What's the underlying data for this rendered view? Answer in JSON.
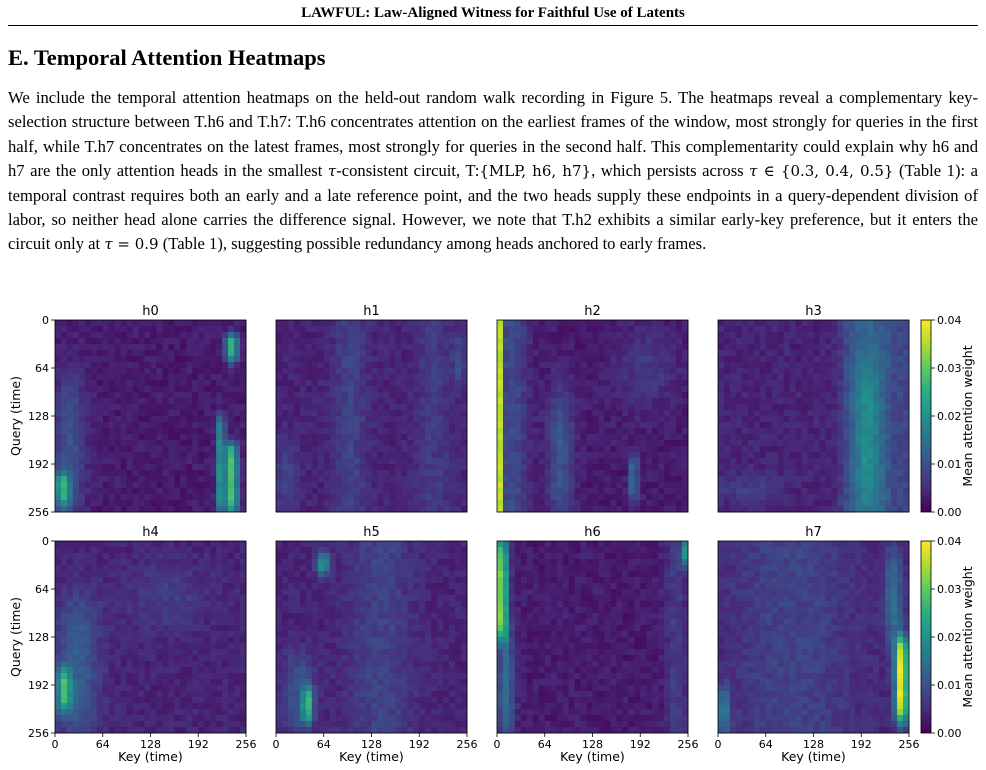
{
  "header": {
    "running_title": "LAWFUL: Law-Aligned Witness for Faithful Use of Latents"
  },
  "section": {
    "title": "E. Temporal Attention Heatmaps",
    "paragraph": {
      "p1": "We include the temporal attention heatmaps on the held-out random walk recording in Figure 5. The heatmaps reveal a complementary key-selection structure between T.h6 and T.h7: T.h6 concentrates attention on the earliest frames of the window, most strongly for queries in the first half, while T.h7 concentrates on the latest frames, most strongly for queries in the second half. This complementarity could explain why h6 and h7 are the only attention heads in the smallest ",
      "tau1": "τ",
      "p2": "-consistent circuit, T:",
      "set": "{MLP, h6, h7}",
      "p3": ", which persists across ",
      "tau2": "τ",
      "in_set": " ∈ {0.3, 0.4, 0.5}",
      "p4": " (Table 1): a temporal contrast requires both an early and a late reference point, and the two heads supply these endpoints in a query-dependent division of labor, so neither head alone carries the difference signal. However, we note that T.h2 exhibits a similar early-key preference, but it enters the circuit only at ",
      "tau3": "τ",
      "eq": " = 0.9",
      "p5": " (Table 1), suggesting possible redundancy among heads anchored to early frames."
    }
  },
  "figure": {
    "chart_data": {
      "type": "heatmap",
      "panels": [
        "h0",
        "h1",
        "h2",
        "h3",
        "h4",
        "h5",
        "h6",
        "h7"
      ],
      "grid": "2x4",
      "xlabel": "Key (time)",
      "ylabel": "Query (time)",
      "x_ticks": [
        "0",
        "64",
        "128",
        "192",
        "256"
      ],
      "y_ticks": [
        "0",
        "64",
        "128",
        "192",
        "256"
      ],
      "colorbar": {
        "label": "Mean attention weight",
        "ticks": [
          "0.00",
          "0.01",
          "0.02",
          "0.03",
          "0.04"
        ],
        "range": [
          0,
          0.04
        ],
        "colormap": "viridis"
      },
      "approx_structure": {
        "h0": "low overall (~0.003); late-key stripes ~0.03 for queries 20-50 and 170-256; early-key patch near query 230",
        "h1": "mostly uniform low (~0.004); faint bands",
        "h2": "strong earliest-key column (~0.04) across all queries",
        "h3": "late-key band (keys 160-230) moderate (~0.01-0.015)",
        "h4": "early-key band (~0.02-0.03) for queries 170-220",
        "h5": "hotspots near key 60 query 30 and key 40 query 215",
        "h6": "earliest keys strong for queries 0-130 (~0.03-0.04); latest keys near query 10",
        "h7": "latest keys strong (~0.04) for queries 130-240; earliest keys moderate at bottom"
      }
    }
  }
}
